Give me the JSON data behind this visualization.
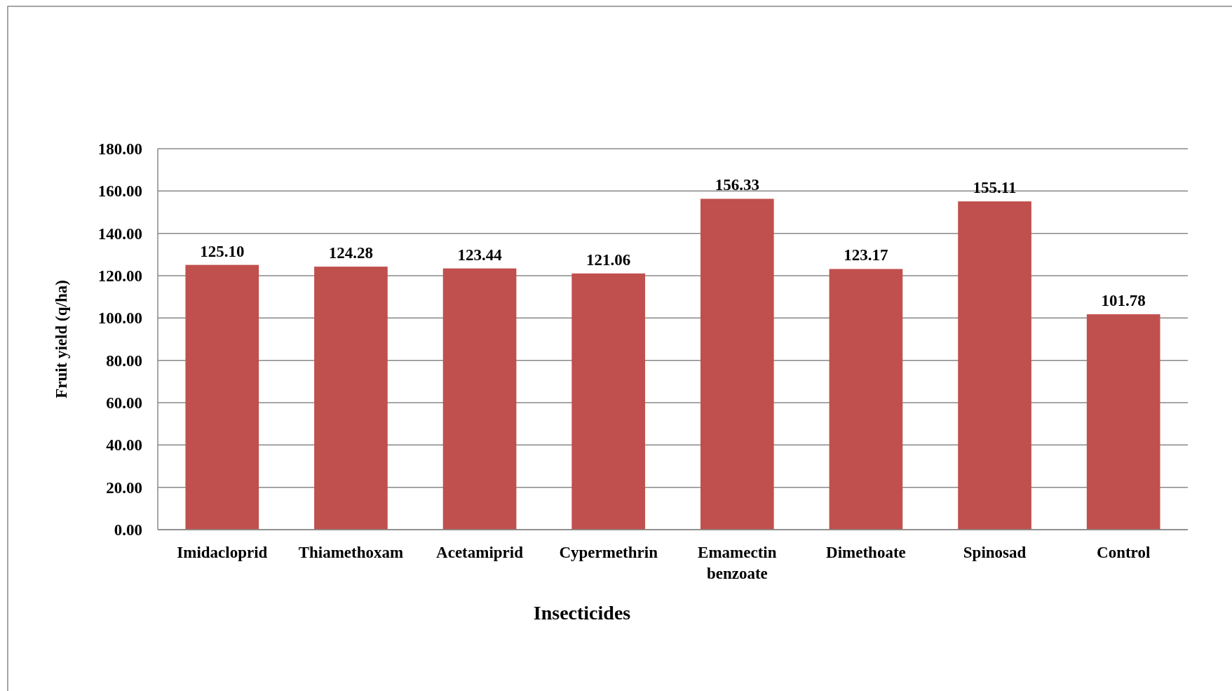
{
  "chart_data": {
    "type": "bar",
    "xlabel": "Insecticides",
    "ylabel": "Fruit yield (q/ha)",
    "categories": [
      "Imidacloprid",
      "Thiamethoxam",
      "Acetamiprid",
      "Cypermethrin",
      "Emamectin benzoate",
      "Dimethoate",
      "Spinosad",
      "Control"
    ],
    "values": [
      125.1,
      124.28,
      123.44,
      121.06,
      156.33,
      123.17,
      155.11,
      101.78
    ],
    "value_labels": [
      "125.10",
      "124.28",
      "123.44",
      "121.06",
      "156.33",
      "123.17",
      "155.11",
      "101.78"
    ],
    "color": "#c0504d",
    "ylim": [
      0,
      180
    ],
    "yticks": [
      {
        "value": 0,
        "label": "0.00"
      },
      {
        "value": 20,
        "label": "20.00"
      },
      {
        "value": 40,
        "label": "40.00"
      },
      {
        "value": 60,
        "label": "60.00"
      },
      {
        "value": 80,
        "label": "80.00"
      },
      {
        "value": 100,
        "label": "100.00"
      },
      {
        "value": 120,
        "label": "120.00"
      },
      {
        "value": 140,
        "label": "140.00"
      },
      {
        "value": 160,
        "label": "160.00"
      },
      {
        "value": 180,
        "label": "180.00"
      }
    ],
    "grid": "y"
  }
}
